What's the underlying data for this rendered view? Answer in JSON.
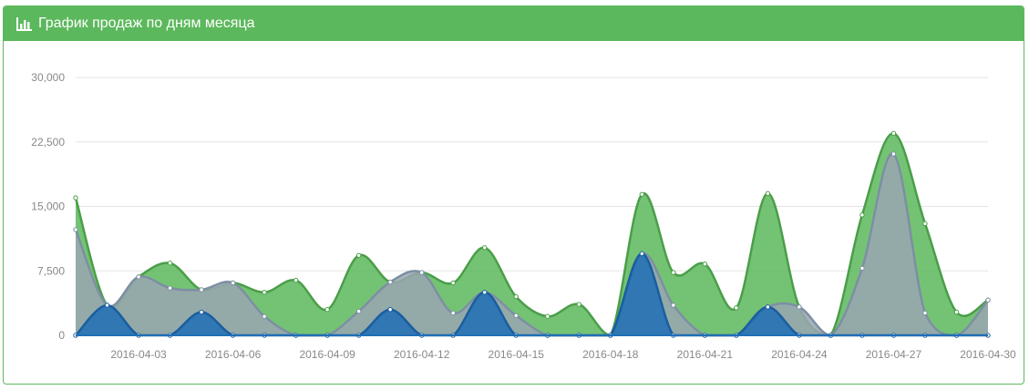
{
  "panel": {
    "title": "График продаж по дням месяца",
    "icon": "bar-chart-icon"
  },
  "colors": {
    "heading": "#5cb85c",
    "green_series": "#5cb85c",
    "grey_series": "#9aa6b2",
    "blue_series": "#1f6fb5"
  },
  "chart_data": {
    "type": "area",
    "x": [
      "2016-04-01",
      "2016-04-02",
      "2016-04-03",
      "2016-04-04",
      "2016-04-05",
      "2016-04-06",
      "2016-04-07",
      "2016-04-08",
      "2016-04-09",
      "2016-04-10",
      "2016-04-11",
      "2016-04-12",
      "2016-04-13",
      "2016-04-14",
      "2016-04-15",
      "2016-04-16",
      "2016-04-17",
      "2016-04-18",
      "2016-04-19",
      "2016-04-20",
      "2016-04-21",
      "2016-04-22",
      "2016-04-23",
      "2016-04-24",
      "2016-04-25",
      "2016-04-26",
      "2016-04-27",
      "2016-04-28",
      "2016-04-29",
      "2016-04-30"
    ],
    "x_tick_labels": [
      "2016-04-03",
      "2016-04-06",
      "2016-04-09",
      "2016-04-12",
      "2016-04-15",
      "2016-04-18",
      "2016-04-21",
      "2016-04-24",
      "2016-04-27",
      "2016-04-30"
    ],
    "y_ticks": [
      "0",
      "7,500",
      "15,000",
      "22,500",
      "30,000"
    ],
    "ylim": [
      0,
      30000
    ],
    "grid": true,
    "series": [
      {
        "color": "#5cb85c",
        "values": [
          16000,
          3500,
          6800,
          8400,
          5300,
          6100,
          5000,
          6400,
          3000,
          9300,
          6200,
          7300,
          6100,
          10200,
          4500,
          2200,
          3600,
          0,
          16400,
          7300,
          8300,
          3200,
          16500,
          3300,
          0,
          14000,
          23500,
          13000,
          2700,
          4100
        ]
      },
      {
        "color": "#9aa6b2",
        "values": [
          12300,
          3500,
          6800,
          5500,
          5300,
          6100,
          2200,
          0,
          0,
          2800,
          6200,
          7300,
          2600,
          5000,
          2300,
          0,
          0,
          0,
          9500,
          3500,
          0,
          0,
          3300,
          3300,
          0,
          7800,
          21100,
          2600,
          0,
          4100
        ]
      },
      {
        "color": "#1f6fb5",
        "values": [
          0,
          3500,
          0,
          0,
          2700,
          0,
          0,
          0,
          0,
          0,
          3000,
          0,
          0,
          5000,
          0,
          0,
          0,
          0,
          9500,
          0,
          0,
          0,
          3300,
          0,
          0,
          0,
          0,
          0,
          0,
          0
        ]
      }
    ]
  }
}
